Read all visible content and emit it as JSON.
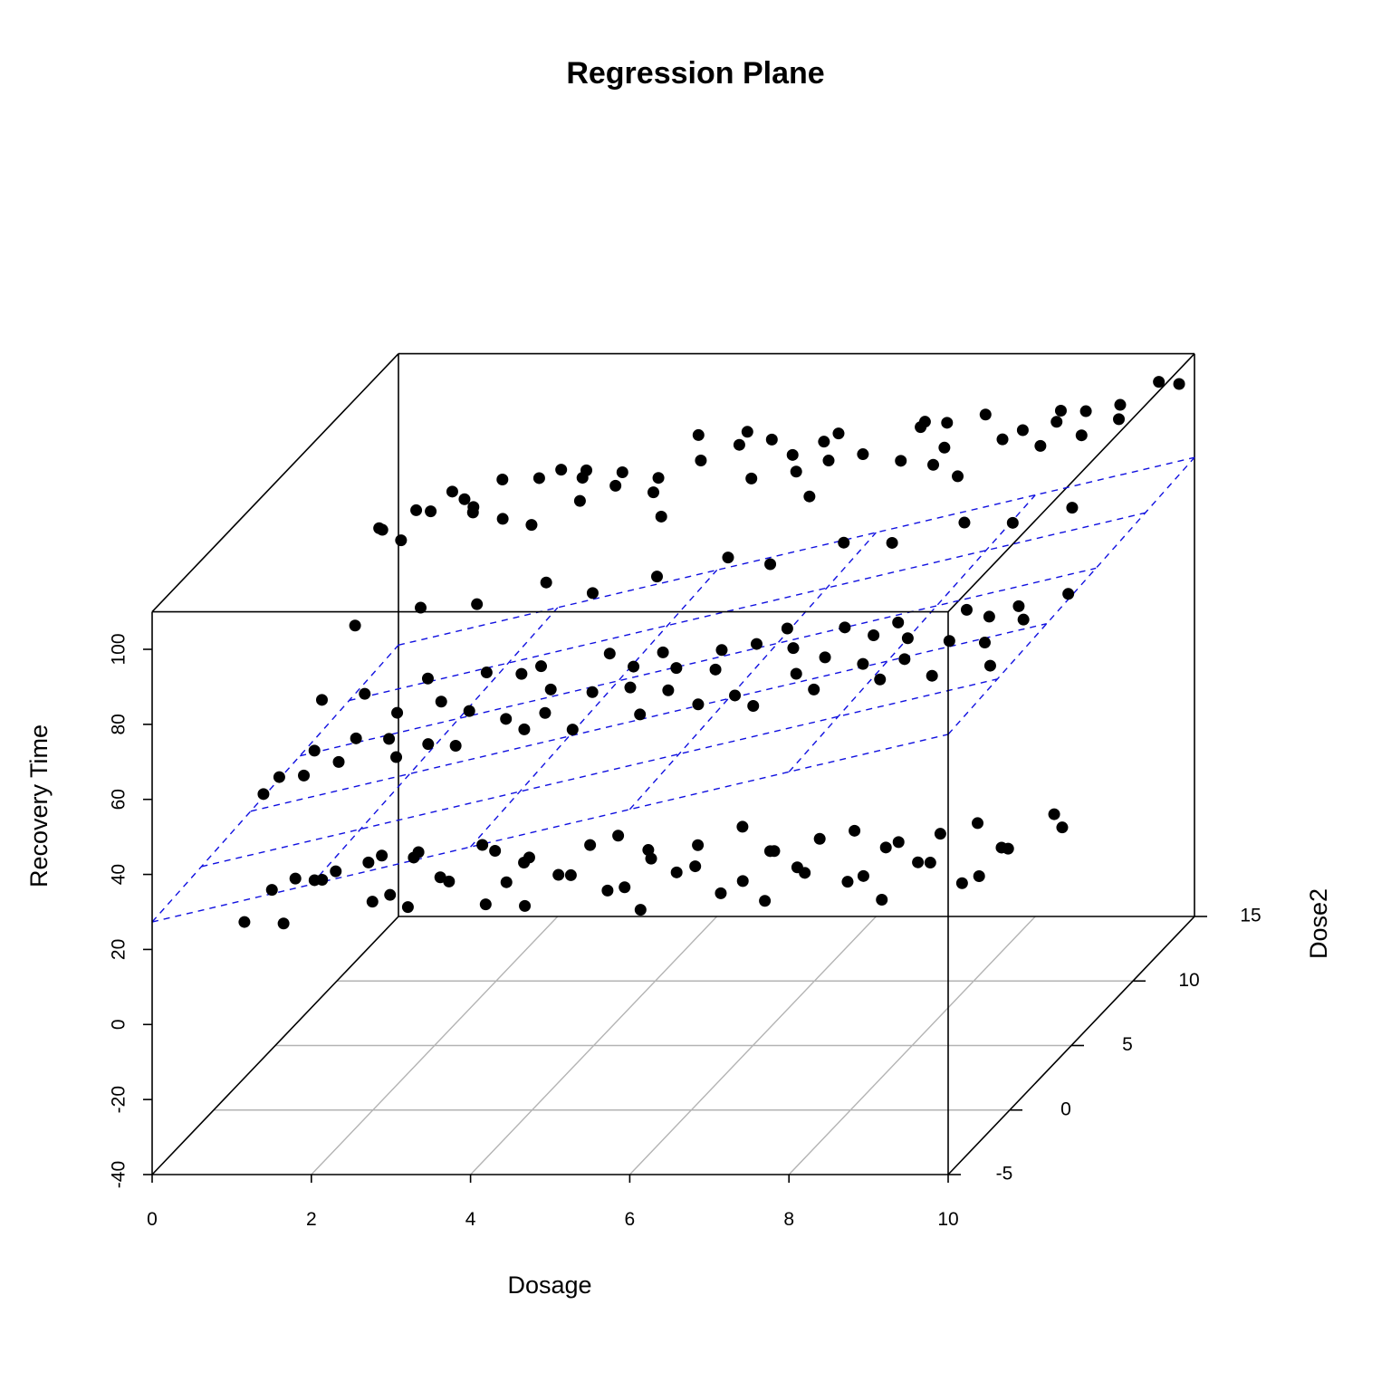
{
  "chart_data": {
    "type": "scatter",
    "title": "Regression Plane",
    "xlabel": "Dosage",
    "ylabel": "Dose2",
    "zlabel": "Recovery Time",
    "xlim": [
      0,
      10
    ],
    "ylim": [
      -5,
      15
    ],
    "zlim": [
      -40,
      110
    ],
    "x_ticks": [
      "0",
      "2",
      "4",
      "6",
      "8",
      "10"
    ],
    "y_ticks": [
      "-5",
      "0",
      "5",
      "10",
      "15"
    ],
    "z_ticks": [
      "-40",
      "-20",
      "0",
      "20",
      "40",
      "60",
      "80",
      "100"
    ],
    "grid": "floor",
    "plane": {
      "color": "#1010e0",
      "style": "dashed",
      "intercept": 28.58,
      "x_coef": 5.0,
      "y_coef": 0.25
    },
    "series": [
      {
        "x": [
          0.2,
          0.5,
          0.8,
          1.1,
          1.4,
          1.7,
          2.0,
          2.3,
          2.6,
          2.9,
          3.2,
          3.5,
          3.8,
          4.1,
          4.4,
          4.7,
          5.0,
          5.3,
          5.6,
          5.9,
          6.2,
          6.5,
          6.8,
          7.1,
          7.4,
          7.7,
          8.0,
          8.3,
          8.6,
          8.9,
          9.2,
          9.5,
          9.8,
          0.3,
          0.9,
          1.6,
          2.4,
          3.1,
          3.9,
          4.6,
          5.4,
          6.1,
          6.9,
          7.6,
          8.4,
          9.1,
          9.7,
          0.6,
          1.3,
          2.1,
          2.8,
          3.6,
          4.3,
          5.1,
          5.8,
          6.6,
          7.3,
          8.1,
          8.8,
          9.5,
          1.0,
          2.5,
          4.0,
          5.5,
          7.0,
          8.5,
          9.9
        ],
        "y": [
          12.4,
          10.2,
          14.2,
          8.1,
          12.0,
          10.1,
          13.5,
          8.6,
          9.0,
          11.2,
          12.5,
          10.0,
          14.8,
          9.2,
          7.9,
          12.3,
          13.0,
          9.4,
          11.1,
          12.6,
          8.3,
          10.7,
          13.8,
          9.9,
          11.5,
          12.9,
          8.7,
          10.4,
          13.2,
          9.6,
          11.0,
          12.2,
          13.4,
          14.5,
          11.8,
          13.1,
          12.7,
          9.7,
          10.9,
          13.6,
          12.1,
          10.5,
          12.8,
          9.3,
          11.4,
          12.0,
          10.8,
          7.6,
          8.4,
          7.8,
          8.9,
          7.5,
          8.2,
          8.8,
          7.7,
          8.5,
          7.9,
          8.6,
          8.0,
          8.3,
          13.9,
          14.1,
          13.7,
          14.0,
          14.3,
          13.5,
          14.4
        ],
        "z": [
          72,
          80,
          76,
          84,
          78,
          86,
          82,
          88,
          85,
          90,
          87,
          92,
          89,
          93,
          91,
          95,
          94,
          96,
          92,
          97,
          95,
          98,
          96,
          99,
          97,
          101,
          99,
          103,
          101,
          104,
          102,
          106,
          108,
          70,
          79,
          83,
          87,
          89,
          91,
          94,
          93,
          97,
          98,
          100,
          102,
          105,
          107,
          63,
          65,
          68,
          70,
          72,
          74,
          77,
          79,
          82,
          84,
          87,
          89,
          92,
          75,
          82,
          86,
          90,
          94,
          97,
          104
        ]
      },
      {
        "x": [
          0.3,
          0.6,
          0.9,
          1.2,
          1.5,
          1.8,
          2.1,
          2.4,
          2.7,
          3.0,
          3.3,
          3.6,
          3.9,
          4.2,
          4.5,
          4.8,
          5.1,
          5.4,
          5.7,
          6.0,
          6.3,
          6.6,
          6.9,
          7.2,
          7.5,
          7.8,
          8.1,
          8.4,
          8.7,
          9.0,
          9.3,
          9.6,
          9.9,
          0.4,
          1.0,
          1.7,
          2.5,
          3.2,
          4.0,
          4.7,
          5.5,
          6.2,
          7.0,
          7.7,
          8.5,
          9.2,
          0.7,
          1.4,
          2.2,
          2.9,
          3.7,
          4.4,
          5.2,
          5.9,
          6.7,
          7.4,
          8.2,
          8.9,
          9.6
        ],
        "y": [
          2.1,
          4.3,
          1.5,
          3.8,
          5.2,
          2.6,
          4.9,
          1.9,
          3.3,
          5.6,
          2.4,
          4.1,
          1.7,
          3.6,
          5.0,
          2.8,
          4.6,
          2.0,
          3.9,
          5.3,
          1.6,
          4.4,
          2.7,
          3.1,
          5.1,
          2.3,
          4.0,
          1.8,
          3.5,
          4.8,
          2.5,
          3.7,
          5.4,
          6.2,
          5.8,
          6.4,
          6.0,
          5.9,
          6.3,
          6.1,
          5.7,
          6.5,
          6.0,
          5.8,
          6.2,
          5.9,
          0.8,
          1.1,
          0.6,
          0.9,
          1.3,
          0.7,
          1.0,
          1.2,
          0.5,
          0.9,
          1.1,
          0.8,
          1.0
        ],
        "z": [
          37,
          41,
          44,
          46,
          48,
          50,
          52,
          51,
          55,
          57,
          56,
          58,
          60,
          59,
          61,
          63,
          62,
          65,
          64,
          66,
          65,
          68,
          67,
          70,
          69,
          71,
          72,
          74,
          73,
          75,
          76,
          78,
          79,
          48,
          51,
          53,
          56,
          58,
          60,
          61,
          63,
          66,
          68,
          70,
          72,
          74,
          46,
          49,
          52,
          54,
          57,
          59,
          62,
          64,
          66,
          69,
          71,
          73,
          75
        ]
      },
      {
        "x": [
          0.2,
          0.5,
          0.8,
          1.1,
          1.4,
          1.7,
          2.0,
          2.3,
          2.6,
          2.9,
          3.2,
          3.5,
          3.8,
          4.1,
          4.4,
          4.7,
          5.0,
          5.3,
          5.6,
          5.9,
          6.2,
          6.5,
          6.8,
          7.1,
          7.4,
          7.7,
          8.0,
          8.3,
          8.6,
          8.9,
          9.2,
          9.5,
          9.8,
          0.4,
          1.0,
          1.6,
          2.4,
          3.0,
          3.8,
          4.5,
          5.2,
          6.0,
          6.7,
          7.5,
          8.2,
          9.0,
          9.7,
          0.7,
          1.3,
          2.2,
          2.8,
          3.6,
          4.3,
          5.1,
          5.8,
          6.6,
          7.3,
          8.1,
          8.8,
          9.6
        ],
        "y": [
          1.2,
          3.4,
          0.5,
          2.8,
          4.6,
          1.9,
          3.7,
          0.9,
          2.3,
          4.1,
          1.4,
          3.0,
          0.7,
          2.5,
          4.4,
          1.6,
          3.2,
          0.4,
          2.9,
          4.8,
          1.1,
          3.5,
          0.8,
          2.1,
          4.2,
          1.7,
          3.9,
          0.6,
          2.6,
          4.5,
          1.3,
          3.1,
          4.9,
          5.6,
          6.1,
          5.9,
          6.3,
          5.8,
          6.0,
          6.2,
          5.7,
          6.4,
          5.9,
          6.1,
          6.0,
          5.8,
          6.2,
          0.2,
          0.4,
          0.1,
          0.3,
          0.5,
          0.2,
          0.4,
          0.1,
          0.3,
          0.2,
          0.4,
          0.3,
          0.1
        ],
        "z": [
          6,
          10,
          8,
          14,
          12,
          9,
          16,
          11,
          13,
          15,
          10,
          17,
          12,
          14,
          18,
          13,
          16,
          12,
          15,
          19,
          14,
          17,
          13,
          16,
          20,
          15,
          18,
          14,
          17,
          21,
          16,
          19,
          22,
          2,
          5,
          7,
          9,
          6,
          10,
          8,
          11,
          7,
          12,
          9,
          13,
          10,
          14,
          18,
          20,
          17,
          21,
          19,
          22,
          18,
          23,
          20,
          24,
          21,
          25,
          22
        ]
      }
    ]
  }
}
